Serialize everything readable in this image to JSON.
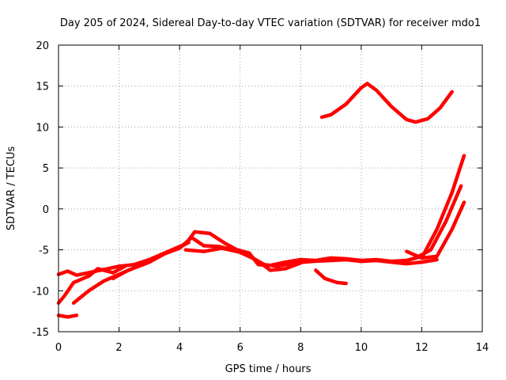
{
  "chart_data": {
    "type": "line",
    "title": "Day 205 of 2024, Sidereal Day-to-day VTEC variation (SDTVAR) for receiver mdo1",
    "xlabel": "GPS time / hours",
    "ylabel": "SDTVAR / TECUs",
    "xlim": [
      0,
      14
    ],
    "ylim": [
      -15,
      20
    ],
    "xticks": [
      0,
      2,
      4,
      6,
      8,
      10,
      12,
      14
    ],
    "yticks": [
      -15,
      -10,
      -5,
      0,
      5,
      10,
      15,
      20
    ],
    "grid": true,
    "color": "#ff0000",
    "series": [
      {
        "name": "s1",
        "x": [
          0.0,
          0.3,
          0.6,
          1.0,
          1.5,
          2.0,
          2.5,
          3.0,
          3.5,
          4.0,
          4.3
        ],
        "y": [
          -8.0,
          -7.6,
          -8.1,
          -7.8,
          -7.4,
          -7.0,
          -6.8,
          -6.2,
          -5.4,
          -4.6,
          -4.1
        ]
      },
      {
        "name": "s2",
        "x": [
          0.0,
          0.2,
          0.5,
          1.0,
          1.3,
          1.8,
          2.2
        ],
        "y": [
          -11.5,
          -10.6,
          -9.0,
          -8.2,
          -7.3,
          -7.8,
          -7.0
        ]
      },
      {
        "name": "s3",
        "x": [
          0.0,
          0.3,
          0.6
        ],
        "y": [
          -13.0,
          -13.2,
          -13.0
        ]
      },
      {
        "name": "s4",
        "x": [
          0.5,
          1.0,
          1.5,
          2.0,
          2.5,
          3.0,
          3.5,
          4.0,
          4.4,
          4.8,
          5.3,
          5.8,
          6.2,
          6.6,
          7.0,
          7.5,
          8.0
        ],
        "y": [
          -11.5,
          -10.0,
          -8.8,
          -8.0,
          -7.2,
          -6.5,
          -5.5,
          -4.8,
          -3.5,
          -4.5,
          -4.6,
          -5.0,
          -5.5,
          -6.4,
          -7.5,
          -7.3,
          -6.6
        ]
      },
      {
        "name": "s5",
        "x": [
          1.8,
          2.3,
          2.8,
          3.3,
          3.8,
          4.2,
          4.5,
          5.0,
          5.5,
          5.9,
          6.3,
          6.6,
          7.0,
          7.5,
          8.0,
          8.5,
          9.0,
          9.5,
          10.0,
          10.5,
          11.0,
          11.5,
          12.0
        ],
        "y": [
          -8.5,
          -7.5,
          -6.8,
          -5.8,
          -5.0,
          -4.3,
          -2.8,
          -3.0,
          -4.2,
          -5.0,
          -5.4,
          -6.8,
          -6.9,
          -6.5,
          -6.2,
          -6.3,
          -6.0,
          -6.1,
          -6.3,
          -6.2,
          -6.4,
          -6.3,
          -5.8
        ]
      },
      {
        "name": "s6",
        "x": [
          4.2,
          4.8,
          5.4,
          6.0,
          6.4,
          6.8,
          7.2,
          7.8,
          8.4,
          9.0,
          9.5,
          10.0,
          10.5,
          11.0,
          11.5,
          12.0,
          12.5
        ],
        "y": [
          -5.0,
          -5.2,
          -4.8,
          -5.3,
          -6.0,
          -6.8,
          -7.0,
          -6.6,
          -6.4,
          -6.3,
          -6.2,
          -6.4,
          -6.3,
          -6.5,
          -6.7,
          -6.5,
          -6.2
        ]
      },
      {
        "name": "s7",
        "x": [
          8.5,
          8.8,
          9.2,
          9.5
        ],
        "y": [
          -7.5,
          -8.5,
          -9.0,
          -9.1
        ]
      },
      {
        "name": "s8",
        "x": [
          8.7,
          9.0,
          9.5,
          10.0,
          10.2,
          10.5,
          11.0,
          11.5,
          11.8,
          12.2,
          12.6,
          13.0
        ],
        "y": [
          11.2,
          11.5,
          12.8,
          14.8,
          15.3,
          14.5,
          12.5,
          10.9,
          10.6,
          11.0,
          12.3,
          14.3
        ]
      },
      {
        "name": "s9",
        "x": [
          11.5,
          12.0,
          12.5,
          13.0,
          13.4
        ],
        "y": [
          -5.2,
          -6.0,
          -2.5,
          2.0,
          6.5
        ]
      },
      {
        "name": "s10",
        "x": [
          11.3,
          11.8,
          12.3,
          12.8,
          13.3
        ],
        "y": [
          -6.5,
          -6.0,
          -5.0,
          -1.5,
          2.8
        ]
      },
      {
        "name": "s11",
        "x": [
          12.0,
          12.5,
          13.0,
          13.4
        ],
        "y": [
          -6.0,
          -5.8,
          -2.5,
          0.8
        ]
      }
    ]
  }
}
